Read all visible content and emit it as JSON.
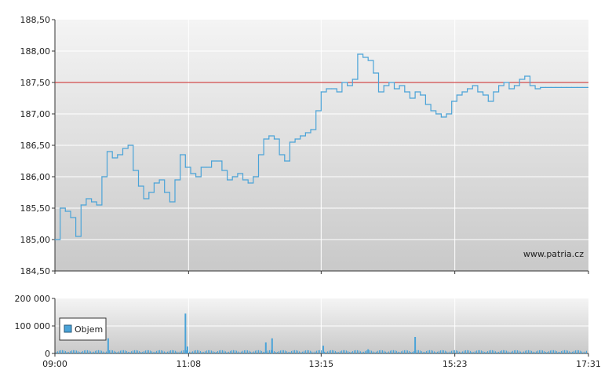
{
  "chart_data": [
    {
      "type": "line",
      "title": "",
      "watermark": "www.patria.cz",
      "y_ticks": [
        "184,50",
        "185,00",
        "185,50",
        "186,00",
        "186,50",
        "187,00",
        "187,50",
        "188,00",
        "188,50"
      ],
      "ylim": [
        184.5,
        188.5
      ],
      "x_ticks": [
        "09:00",
        "11:08",
        "13:15",
        "15:23",
        "17:31"
      ],
      "reference_line": {
        "value": 187.5,
        "color": "#cc2222"
      },
      "line_color": "#4aa3d8",
      "grid": true,
      "background": {
        "top": "#f4f4f4",
        "bottom": "#c9c9c9"
      },
      "series": [
        {
          "x": [
            "09:00",
            "09:05",
            "09:10",
            "09:15",
            "09:20",
            "09:25",
            "09:30",
            "09:35",
            "09:40",
            "09:45",
            "09:50",
            "09:55",
            "10:00",
            "10:05",
            "10:10",
            "10:15",
            "10:20",
            "10:25",
            "10:30",
            "10:35",
            "10:40",
            "10:45",
            "10:50",
            "10:55",
            "11:00",
            "11:05",
            "11:10",
            "11:15",
            "11:20",
            "11:25",
            "11:30",
            "11:35",
            "11:40",
            "11:45",
            "11:50",
            "11:55",
            "12:00",
            "12:05",
            "12:10",
            "12:15",
            "12:20",
            "12:25",
            "12:30",
            "12:35",
            "12:40",
            "12:45",
            "12:50",
            "12:55",
            "13:00",
            "13:05",
            "13:10",
            "13:15",
            "13:20",
            "13:25",
            "13:30",
            "13:35",
            "13:40",
            "13:45",
            "13:50",
            "13:55",
            "14:00",
            "14:05",
            "14:10",
            "14:15",
            "14:20",
            "14:25",
            "14:30",
            "14:35",
            "14:40",
            "14:45",
            "14:50",
            "14:55",
            "15:00",
            "15:05",
            "15:10",
            "15:15",
            "15:20",
            "15:25",
            "15:30",
            "15:35",
            "15:40",
            "15:45",
            "15:50",
            "15:55",
            "16:00",
            "16:05",
            "16:10",
            "16:15",
            "16:20",
            "16:25",
            "16:30",
            "16:35",
            "16:40",
            "16:45",
            "16:50",
            "16:55",
            "17:00",
            "17:05",
            "17:10",
            "17:15",
            "17:20",
            "17:25",
            "17:30"
          ],
          "values": [
            185.0,
            185.5,
            185.45,
            185.35,
            185.05,
            185.55,
            185.65,
            185.6,
            185.55,
            186.0,
            186.4,
            186.3,
            186.35,
            186.45,
            186.5,
            186.1,
            185.85,
            185.65,
            185.75,
            185.9,
            185.95,
            185.75,
            185.6,
            185.95,
            186.35,
            186.15,
            186.05,
            186.0,
            186.15,
            186.15,
            186.25,
            186.25,
            186.1,
            185.95,
            186.0,
            186.05,
            185.95,
            185.9,
            186.0,
            186.35,
            186.6,
            186.65,
            186.6,
            186.35,
            186.25,
            186.55,
            186.6,
            186.65,
            186.7,
            186.75,
            187.05,
            187.35,
            187.4,
            187.4,
            187.35,
            187.5,
            187.45,
            187.55,
            187.95,
            187.9,
            187.85,
            187.65,
            187.35,
            187.45,
            187.5,
            187.4,
            187.45,
            187.35,
            187.25,
            187.35,
            187.3,
            187.15,
            187.05,
            187.0,
            186.95,
            187.0,
            187.2,
            187.3,
            187.35,
            187.4,
            187.45,
            187.35,
            187.3,
            187.2,
            187.35,
            187.45,
            187.5,
            187.4,
            187.45,
            187.55,
            187.6,
            187.45,
            187.4,
            187.42,
            187.42,
            187.42,
            187.42,
            187.42,
            187.42,
            187.42,
            187.42,
            187.42,
            187.42
          ]
        }
      ]
    },
    {
      "type": "bar",
      "y_ticks": [
        "0",
        "100 000",
        "200 000"
      ],
      "ylim": [
        0,
        200000
      ],
      "x_ticks": [
        "09:00",
        "11:08",
        "13:15",
        "15:23",
        "17:31"
      ],
      "bar_color": "#4aa3d8",
      "legend": {
        "position": "top-left",
        "label": "Objem"
      },
      "series": [
        {
          "name": "Objem",
          "spikes": [
            {
              "x": "09:51",
              "value": 55000
            },
            {
              "x": "11:05",
              "value": 145000
            },
            {
              "x": "11:07",
              "value": 25000
            },
            {
              "x": "12:22",
              "value": 40000
            },
            {
              "x": "12:28",
              "value": 55000
            },
            {
              "x": "13:17",
              "value": 28000
            },
            {
              "x": "14:00",
              "value": 15000
            },
            {
              "x": "14:45",
              "value": 60000
            }
          ],
          "baseline_value": 12000
        }
      ]
    }
  ]
}
